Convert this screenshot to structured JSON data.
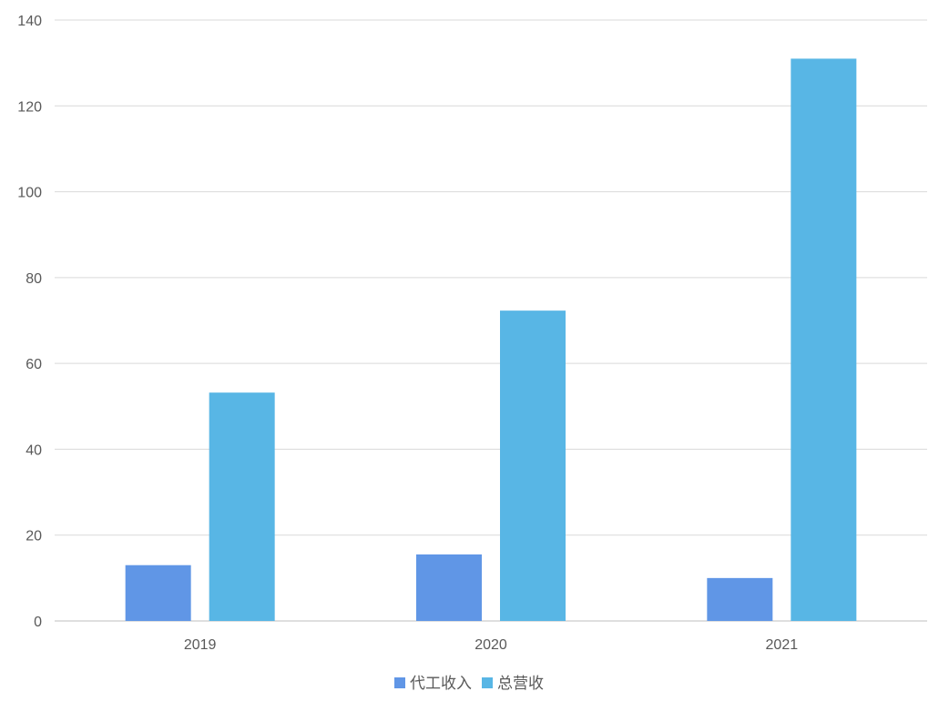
{
  "chart_data": {
    "type": "bar",
    "categories": [
      "2019",
      "2020",
      "2021"
    ],
    "series": [
      {
        "name": "代工收入",
        "values": [
          13,
          15.5,
          10
        ],
        "color": "#6096e6"
      },
      {
        "name": "总营收",
        "values": [
          53.2,
          72.3,
          131
        ],
        "color": "#58b6e5"
      }
    ],
    "title": "",
    "xlabel": "",
    "ylabel": "",
    "ylim": [
      0,
      140
    ],
    "yticks": [
      0,
      20,
      40,
      60,
      80,
      100,
      120,
      140
    ],
    "grid": true,
    "legend_position": "bottom-center"
  }
}
